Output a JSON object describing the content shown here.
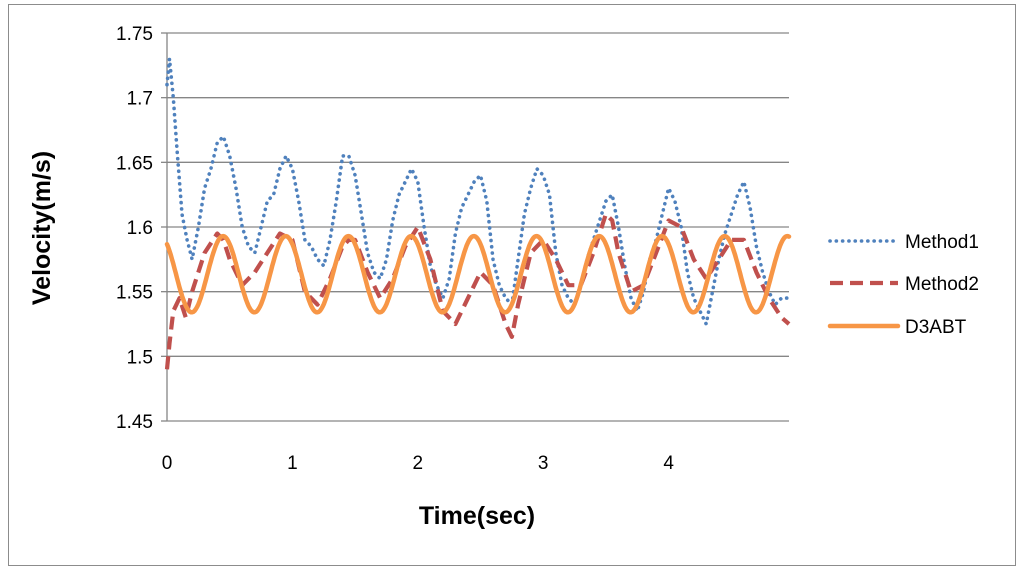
{
  "chart_data": {
    "type": "line",
    "title": "",
    "xlabel": "Time(sec)",
    "ylabel": "Velocity(m/s)",
    "xlim": [
      0,
      4.96
    ],
    "ylim": [
      1.45,
      1.75
    ],
    "x_ticks": [
      "0",
      "1",
      "2",
      "3",
      "4"
    ],
    "y_ticks": [
      "1.45",
      "1.5",
      "1.55",
      "1.6",
      "1.65",
      "1.7",
      "1.75"
    ],
    "grid": "horizontal",
    "legend_position": "right",
    "series": [
      {
        "name": "Method1",
        "style": "dotted",
        "color": "#4f81bd",
        "x": [
          0,
          0.02,
          0.05,
          0.08,
          0.12,
          0.16,
          0.2,
          0.25,
          0.3,
          0.35,
          0.4,
          0.45,
          0.5,
          0.55,
          0.6,
          0.65,
          0.7,
          0.75,
          0.8,
          0.85,
          0.9,
          0.95,
          1.0,
          1.05,
          1.1,
          1.15,
          1.2,
          1.25,
          1.3,
          1.35,
          1.4,
          1.45,
          1.5,
          1.55,
          1.6,
          1.65,
          1.7,
          1.75,
          1.8,
          1.85,
          1.9,
          1.95,
          2.0,
          2.05,
          2.1,
          2.15,
          2.2,
          2.25,
          2.3,
          2.35,
          2.4,
          2.45,
          2.5,
          2.55,
          2.6,
          2.65,
          2.7,
          2.75,
          2.8,
          2.85,
          2.9,
          2.95,
          3.0,
          3.05,
          3.1,
          3.15,
          3.2,
          3.25,
          3.3,
          3.35,
          3.4,
          3.45,
          3.5,
          3.55,
          3.6,
          3.65,
          3.7,
          3.75,
          3.8,
          3.85,
          3.9,
          3.95,
          4.0,
          4.05,
          4.1,
          4.15,
          4.2,
          4.25,
          4.3,
          4.35,
          4.4,
          4.45,
          4.5,
          4.55,
          4.6,
          4.65,
          4.7,
          4.75,
          4.8,
          4.85,
          4.9,
          4.96
        ],
        "y": [
          1.71,
          1.73,
          1.7,
          1.66,
          1.61,
          1.59,
          1.575,
          1.6,
          1.63,
          1.645,
          1.665,
          1.67,
          1.655,
          1.63,
          1.6,
          1.585,
          1.58,
          1.6,
          1.62,
          1.625,
          1.645,
          1.655,
          1.645,
          1.62,
          1.59,
          1.585,
          1.575,
          1.57,
          1.59,
          1.62,
          1.655,
          1.655,
          1.64,
          1.61,
          1.58,
          1.565,
          1.56,
          1.575,
          1.605,
          1.625,
          1.635,
          1.645,
          1.635,
          1.6,
          1.57,
          1.555,
          1.545,
          1.56,
          1.595,
          1.615,
          1.625,
          1.635,
          1.64,
          1.62,
          1.575,
          1.555,
          1.545,
          1.54,
          1.575,
          1.61,
          1.63,
          1.645,
          1.64,
          1.625,
          1.58,
          1.555,
          1.545,
          1.54,
          1.555,
          1.575,
          1.59,
          1.605,
          1.62,
          1.625,
          1.6,
          1.57,
          1.545,
          1.535,
          1.55,
          1.575,
          1.59,
          1.61,
          1.63,
          1.62,
          1.6,
          1.565,
          1.545,
          1.535,
          1.525,
          1.55,
          1.575,
          1.595,
          1.61,
          1.625,
          1.635,
          1.615,
          1.585,
          1.565,
          1.55,
          1.54,
          1.545,
          1.545
        ]
      },
      {
        "name": "Method2",
        "style": "dashed",
        "color": "#c0504d",
        "x": [
          0,
          0.02,
          0.05,
          0.1,
          0.15,
          0.2,
          0.3,
          0.4,
          0.45,
          0.5,
          0.6,
          0.7,
          0.8,
          0.9,
          1.0,
          1.1,
          1.2,
          1.3,
          1.4,
          1.45,
          1.5,
          1.6,
          1.7,
          1.8,
          1.9,
          2.0,
          2.1,
          2.2,
          2.3,
          2.4,
          2.5,
          2.6,
          2.7,
          2.75,
          2.8,
          2.9,
          3.0,
          3.1,
          3.2,
          3.3,
          3.4,
          3.5,
          3.55,
          3.6,
          3.7,
          3.8,
          3.9,
          4.0,
          4.1,
          4.2,
          4.3,
          4.4,
          4.5,
          4.6,
          4.7,
          4.8,
          4.9,
          4.96
        ],
        "y": [
          1.49,
          1.51,
          1.535,
          1.545,
          1.53,
          1.55,
          1.58,
          1.595,
          1.59,
          1.575,
          1.555,
          1.565,
          1.58,
          1.595,
          1.59,
          1.55,
          1.54,
          1.56,
          1.585,
          1.59,
          1.59,
          1.565,
          1.545,
          1.56,
          1.585,
          1.6,
          1.575,
          1.535,
          1.525,
          1.545,
          1.565,
          1.555,
          1.525,
          1.515,
          1.54,
          1.58,
          1.59,
          1.575,
          1.555,
          1.555,
          1.58,
          1.61,
          1.605,
          1.58,
          1.55,
          1.555,
          1.58,
          1.605,
          1.6,
          1.575,
          1.56,
          1.575,
          1.59,
          1.59,
          1.565,
          1.545,
          1.53,
          1.525
        ]
      },
      {
        "name": "D3ABT",
        "style": "solid",
        "color": "#f79646",
        "mean": 1.5635,
        "amplitude": 0.0295,
        "period": 0.5,
        "phase": -0.053
      }
    ]
  }
}
